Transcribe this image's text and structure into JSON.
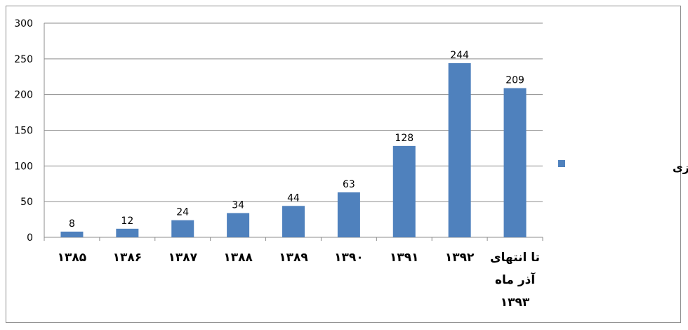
{
  "chart_data": {
    "type": "bar",
    "categories": [
      "۱۳۸۵",
      "۱۳۸۶",
      "۱۳۸۷",
      "۱۳۸۸",
      "۱۳۸۹",
      "۱۳۹۰",
      "۱۳۹۱",
      "۱۳۹۲",
      "تا انتهای\nآذر ماه\n۱۳۹۳"
    ],
    "series": [
      {
        "name": "تعداد برنامه باز آموزی",
        "values": [
          8,
          12,
          24,
          34,
          44,
          63,
          128,
          244,
          209
        ],
        "color": "#4f81bd"
      }
    ],
    "yticks": [
      0,
      50,
      100,
      150,
      200,
      250,
      300
    ],
    "ylim": [
      0,
      300
    ],
    "grid": true,
    "data_labels": true,
    "legend_position": "right",
    "title": "",
    "xlabel": "",
    "ylabel": ""
  }
}
